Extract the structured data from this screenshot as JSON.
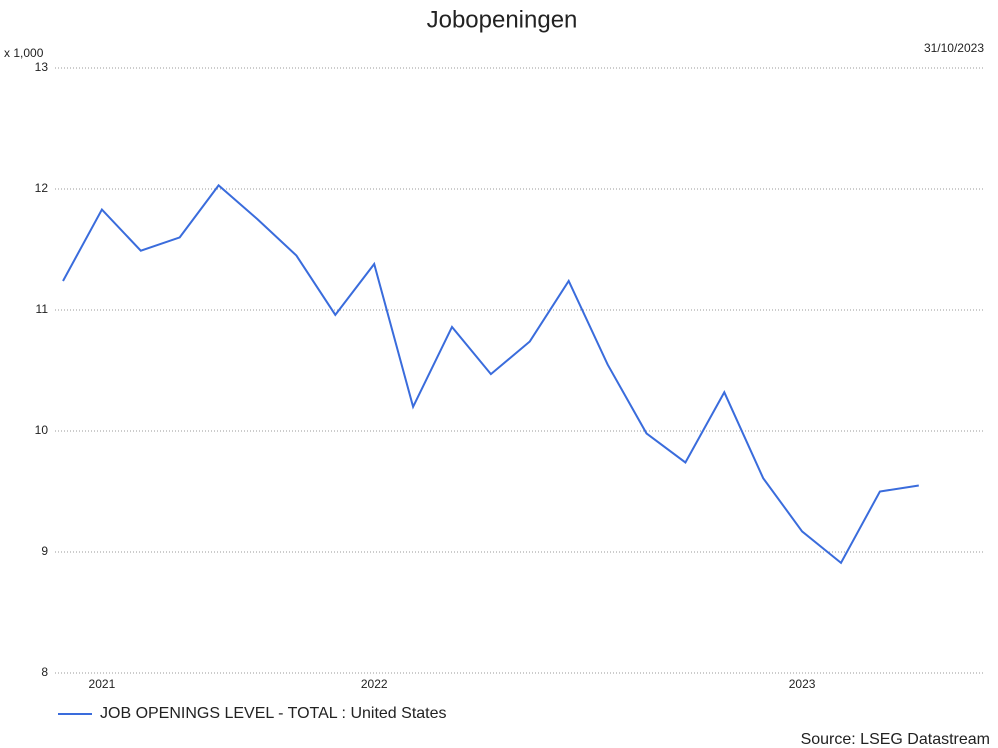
{
  "chart_data": {
    "type": "line",
    "title": "Jobopeningen",
    "unit_label": "x 1,000",
    "date": "31/10/2023",
    "source": "Source: LSEG Datastream",
    "categories": [
      null,
      "2021",
      null,
      null,
      null,
      null,
      null,
      null,
      "2022",
      null,
      null,
      null,
      null,
      null,
      null,
      null,
      null,
      null,
      null,
      "2023",
      null,
      null,
      null
    ],
    "series": [
      {
        "name": "JOB OPENINGS LEVEL - TOTAL : United States",
        "color": "#3a6cdc",
        "values": [
          11.24,
          11.83,
          11.49,
          11.6,
          12.03,
          11.75,
          11.45,
          10.96,
          11.38,
          10.2,
          10.86,
          10.47,
          10.74,
          11.24,
          10.55,
          9.98,
          9.74,
          10.32,
          9.61,
          9.17,
          8.91,
          9.5,
          9.55
        ]
      }
    ],
    "ylim": [
      8,
      13
    ],
    "yticks": [
      8,
      9,
      10,
      11,
      12,
      13
    ],
    "grid": true
  }
}
